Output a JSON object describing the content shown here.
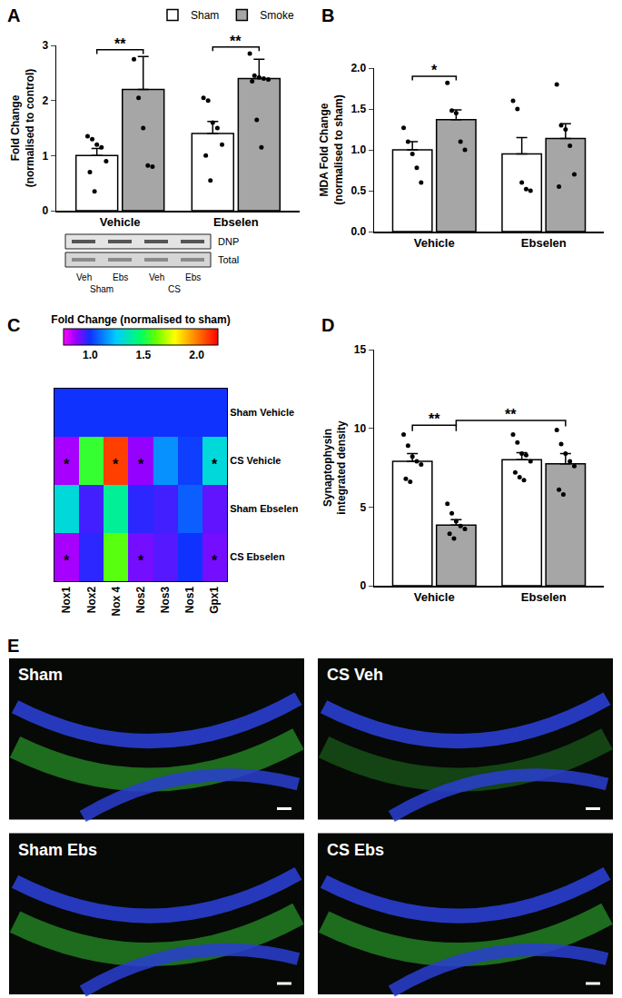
{
  "chart_data": [
    {
      "label": "A",
      "type": "bar",
      "categories": [
        "Vehicle",
        "Ebselen"
      ],
      "y_label": [
        "Fold Change",
        "(normalised to control)"
      ],
      "ylim": [
        0,
        3
      ],
      "yticks": [
        0,
        1,
        2,
        3
      ],
      "grid": false,
      "legend": "top right",
      "series": [
        {
          "name": "Sham",
          "color": "#ffffff",
          "values": [
            1.0,
            1.4
          ],
          "errors": [
            0.13,
            0.22
          ],
          "points": [
            [
              1.35,
              1.3,
              1.2,
              1.15,
              0.9,
              0.7,
              0.35
            ],
            [
              2.05,
              2.0,
              1.6,
              1.5,
              1.2,
              1.0,
              0.55
            ]
          ]
        },
        {
          "name": "Smoke",
          "color": "#a6a6a6",
          "values": [
            2.2,
            2.4
          ],
          "errors": [
            0.6,
            0.35
          ],
          "points": [
            [
              2.75,
              2.05,
              1.5,
              0.82,
              0.8
            ],
            [
              2.85,
              2.45,
              2.42,
              2.4,
              2.38,
              2.35,
              1.65,
              1.15
            ]
          ]
        }
      ],
      "comparisons": [
        {
          "from": [
            0,
            0
          ],
          "to": [
            0,
            1
          ],
          "label": "**"
        },
        {
          "from": [
            1,
            0
          ],
          "to": [
            1,
            1
          ],
          "label": "**"
        }
      ],
      "blot": {
        "bands": [
          "DNP",
          "Total"
        ],
        "lanes": [
          "Veh",
          "Ebs",
          "Veh",
          "Ebs"
        ],
        "groups": [
          "Sham",
          "CS"
        ]
      }
    },
    {
      "label": "B",
      "type": "bar",
      "categories": [
        "Vehicle",
        "Ebselen"
      ],
      "y_label": [
        "MDA Fold Change",
        "(normalised to sham)"
      ],
      "ylim": [
        0,
        2
      ],
      "yticks": [
        {
          "value": 0,
          "label": "0.0"
        },
        0.5,
        {
          "value": 1,
          "label": "1.0"
        },
        1.5,
        {
          "value": 2,
          "label": "2.0"
        }
      ],
      "grid": false,
      "series": [
        {
          "name": "Sham",
          "color": "#ffffff",
          "values": [
            1.0,
            0.95
          ],
          "errors": [
            0.1,
            0.2
          ],
          "points": [
            [
              1.27,
              1.1,
              0.95,
              0.78,
              0.6
            ],
            [
              1.6,
              1.5,
              0.6,
              0.52,
              0.5
            ]
          ]
        },
        {
          "name": "Smoke",
          "color": "#a6a6a6",
          "values": [
            1.37,
            1.14
          ],
          "errors": [
            0.12,
            0.18
          ],
          "points": [
            [
              1.82,
              1.48,
              1.45,
              1.1,
              1.0
            ],
            [
              1.8,
              1.3,
              1.25,
              1.05,
              0.7,
              0.55
            ]
          ]
        }
      ],
      "comparisons": [
        {
          "from": [
            0,
            0
          ],
          "to": [
            0,
            1
          ],
          "label": "*"
        }
      ]
    },
    {
      "label": "C",
      "type": "heatmap",
      "title": "Fold Change (normalised to sham)",
      "x": [
        "Nox1",
        "Nox2",
        "Nox 4",
        "Nos2",
        "Nos3",
        "Nos1",
        "Gpx1"
      ],
      "y": [
        "Sham Vehicle",
        "CS Vehicle",
        "Sham Ebselen",
        "CS Ebselen"
      ],
      "cells": [
        [
          1.0,
          1.0,
          1.0,
          1.0,
          1.0,
          1.0,
          1.0
        ],
        [
          0.85,
          1.55,
          2.1,
          0.87,
          1.15,
          1.02,
          1.3
        ],
        [
          1.3,
          0.95,
          1.4,
          0.97,
          0.95,
          1.07,
          0.92
        ],
        [
          0.85,
          0.97,
          1.6,
          0.9,
          0.93,
          1.0,
          0.9
        ]
      ],
      "marks": [
        [
          null,
          null,
          null,
          null,
          null,
          null,
          null
        ],
        [
          "*",
          null,
          "*",
          "*",
          null,
          null,
          "*"
        ],
        [
          null,
          null,
          null,
          null,
          null,
          null,
          null
        ],
        [
          "*",
          null,
          null,
          "*",
          null,
          null,
          "*"
        ]
      ],
      "zlim": [
        0.75,
        2.2
      ],
      "zticks": [
        {
          "value": 1,
          "label": "1.0"
        },
        1.5,
        {
          "value": 2,
          "label": "2.0"
        }
      ]
    },
    {
      "label": "D",
      "type": "bar",
      "categories": [
        "Vehicle",
        "Ebselen"
      ],
      "y_label": [
        "Synaptophysin",
        "integrated density"
      ],
      "ylim": [
        0,
        15
      ],
      "yticks": [
        0,
        5,
        10,
        15
      ],
      "grid": false,
      "series": [
        {
          "name": "Sham",
          "color": "#ffffff",
          "values": [
            7.9,
            8.0
          ],
          "errors": [
            0.5,
            0.45
          ],
          "points": [
            [
              9.6,
              8.9,
              8.2,
              7.9,
              7.7,
              6.8,
              6.6
            ],
            [
              9.6,
              9.1,
              8.4,
              8.3,
              7.9,
              7.2,
              6.9,
              6.7
            ]
          ]
        },
        {
          "name": "Smoke",
          "color": "#a6a6a6",
          "values": [
            3.85,
            7.75
          ],
          "errors": [
            0.35,
            0.65
          ],
          "points": [
            [
              5.2,
              4.6,
              4.1,
              3.8,
              3.6,
              3.3,
              3.0
            ],
            [
              9.9,
              9.0,
              8.4,
              7.9,
              7.6,
              6.1,
              5.8
            ]
          ]
        }
      ],
      "comparisons": [
        {
          "from": [
            0,
            0
          ],
          "to": [
            0,
            1
          ],
          "label": "**"
        },
        {
          "from": [
            0,
            1
          ],
          "to": [
            1,
            1
          ],
          "label": "**"
        }
      ]
    },
    {
      "label": "E",
      "type": "micrograph",
      "panels": [
        "Sham",
        "CS Veh",
        "Sham Ebs",
        "CS Ebs"
      ]
    }
  ]
}
